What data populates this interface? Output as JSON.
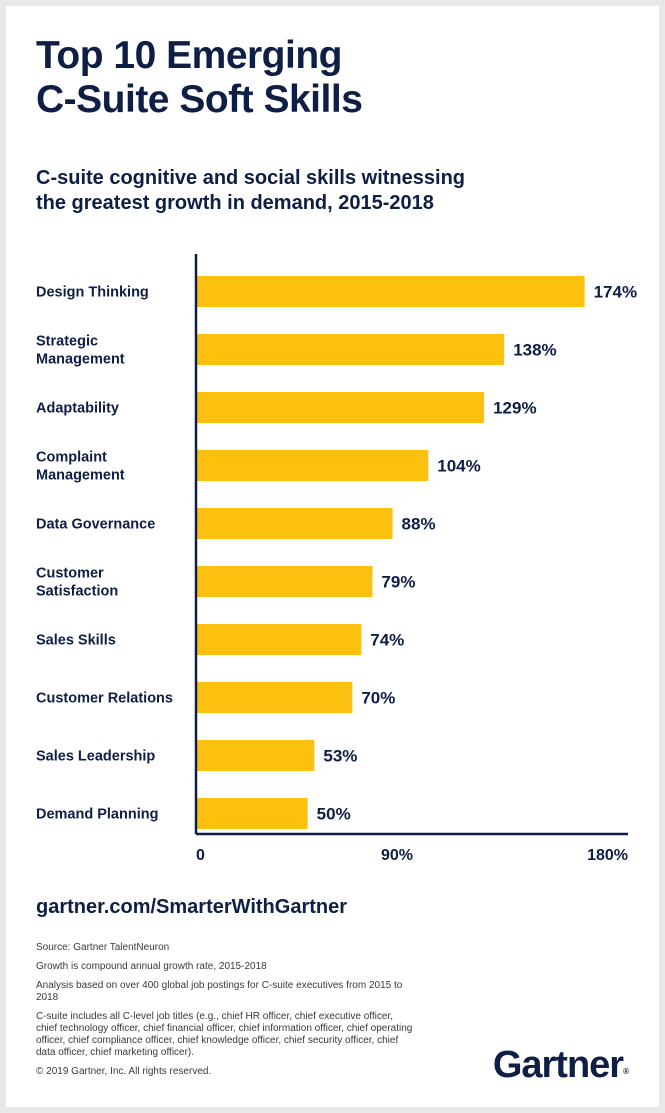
{
  "title_lines": [
    "Top 10 Emerging",
    "C-Suite Soft Skills"
  ],
  "subtitle_lines": [
    "C-suite cognitive and social skills witnessing",
    "the greatest growth in demand, 2015-2018"
  ],
  "chart_data": {
    "type": "bar",
    "orientation": "horizontal",
    "categories": [
      [
        "Design Thinking"
      ],
      [
        "Strategic",
        "Management"
      ],
      [
        "Adaptability"
      ],
      [
        "Complaint",
        "Management"
      ],
      [
        "Data Governance"
      ],
      [
        "Customer",
        "Satisfaction"
      ],
      [
        "Sales Skills"
      ],
      [
        "Customer Relations"
      ],
      [
        "Sales Leadership"
      ],
      [
        "Demand Planning"
      ]
    ],
    "values": [
      174,
      138,
      129,
      104,
      88,
      79,
      74,
      70,
      53,
      50
    ],
    "value_labels": [
      "174%",
      "138%",
      "129%",
      "104%",
      "88%",
      "79%",
      "74%",
      "70%",
      "53%",
      "50%"
    ],
    "xlim": [
      0,
      180
    ],
    "xticks": [
      0,
      90,
      180
    ],
    "xtick_labels": [
      "0",
      "90%",
      "180%"
    ],
    "bar_color": "#fcc10e",
    "grid": false
  },
  "footer": {
    "url": "gartner.com/SmarterWithGartner",
    "source": "Source: Gartner TalentNeuron",
    "note1": "Growth is compound annual growth rate, 2015-2018",
    "note2": "Analysis based on over 400 global job postings for C-suite executives from 2015 to 2018",
    "note3": "C-suite includes all C-level job titles (e.g., chief HR officer, chief executive officer, chief technology officer, chief financial officer, chief information officer, chief operating officer, chief compliance officer, chief knowledge officer, chief security officer, chief data officer, chief marketing officer).",
    "copyright": "© 2019 Gartner, Inc. All rights reserved.",
    "logo": "Gartner",
    "logo_mark": "®"
  },
  "colors": {
    "navy": "#0e1e45",
    "bar": "#fcc10e",
    "background": "#ffffff"
  }
}
